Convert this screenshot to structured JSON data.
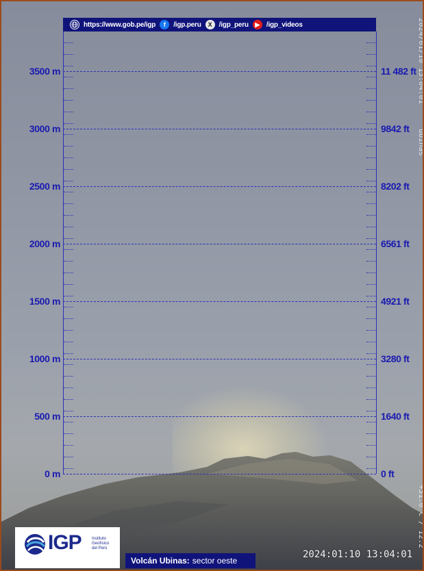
{
  "top_bar": {
    "website": "https://www.gob.pe/igp",
    "facebook": "/igp.peru",
    "x": "/igp_peru",
    "youtube": "/igp_videos",
    "icons": [
      "globe-icon",
      "facebook-icon",
      "x-icon",
      "youtube-icon"
    ]
  },
  "scale": {
    "meters": [
      "3500 m",
      "3000 m",
      "2500 m",
      "2000 m",
      "1500 m",
      "1000 m",
      "500 m",
      "0 m"
    ],
    "feet": [
      "11 482 ft",
      "9842 ft",
      "8202 ft",
      "6561 ft",
      "4921 ft",
      "3280 ft",
      "1640 ft",
      "0 ft"
    ]
  },
  "overlay_right": {
    "timestamp_vertical": "2024/01/10 13:04:01",
    "camera_vertical": "ubinas",
    "temperature_vertical": "+31.0 C / 12.2"
  },
  "logo": {
    "brand": "IGP",
    "institute": [
      "Instituto",
      "Geofísico",
      "del Perú"
    ]
  },
  "caption": {
    "volcano": "Volcán Ubinas:",
    "sector": "sector oeste"
  },
  "timestamp": "2024:01:10 13:04:01",
  "colors": {
    "scale": "#1a1ab0",
    "bar": "#10147a",
    "border": "#9a4a1c"
  }
}
